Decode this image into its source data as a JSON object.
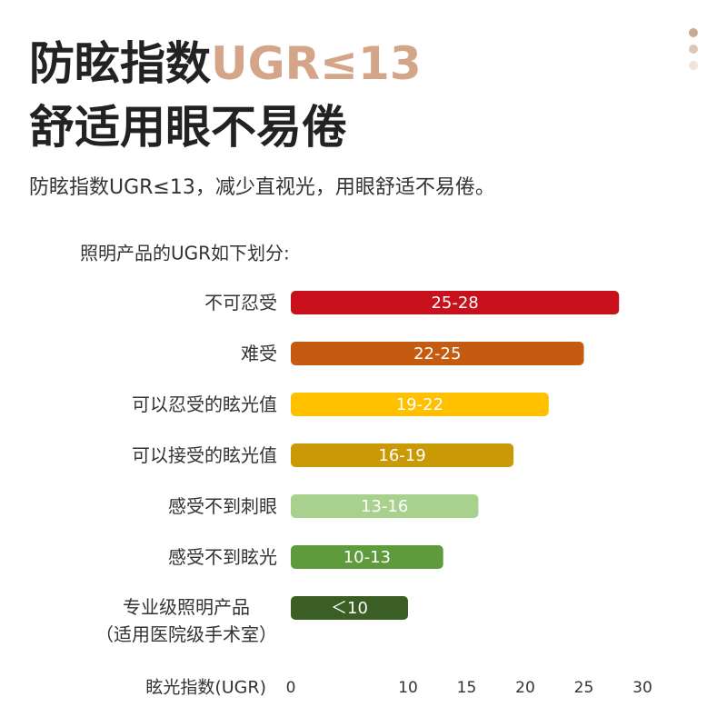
{
  "header": {
    "title_part1": "防眩指数",
    "title_part2": "UGR≤13",
    "title_line2": "舒适用眼不易倦",
    "subtitle": "防眩指数UGR≤13，减少直视光，用眼舒适不易倦。"
  },
  "chart_data": {
    "type": "bar",
    "orientation": "horizontal",
    "title": "照明产品的UGR如下划分:",
    "categories": [
      "不可忍受",
      "难受",
      "可以忍受的眩光值",
      "可以接受的眩光值",
      "感受不到刺眼",
      "感受不到眩光",
      "专业级照明产品\n（适用医院级手术室）"
    ],
    "values": [
      28,
      25,
      22,
      19,
      16,
      13,
      10
    ],
    "value_labels": [
      "25-28",
      "22-25",
      "19-22",
      "16-19",
      "13-16",
      "10-13",
      "＜10"
    ],
    "colors": [
      "#c8101c",
      "#c55a11",
      "#ffc000",
      "#c99a06",
      "#a9d18e",
      "#5f9b3c",
      "#3b5e24"
    ],
    "xlabel": "眩光指数(UGR)",
    "xlim": [
      0,
      30
    ],
    "xticks": [
      0,
      10,
      15,
      20,
      25,
      30
    ]
  }
}
